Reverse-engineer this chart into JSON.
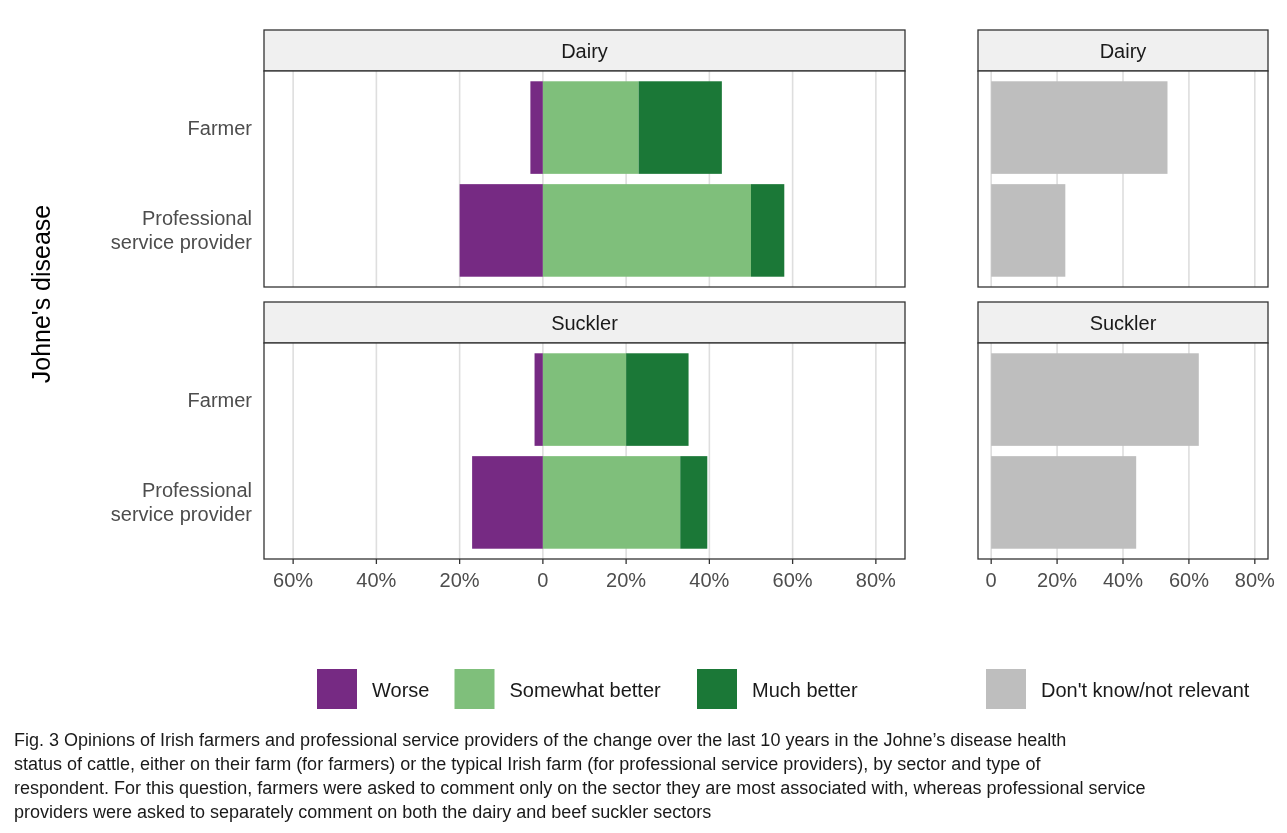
{
  "chart_data": [
    {
      "type": "bar",
      "orientation": "horizontal",
      "stacked": true,
      "title": "Dairy",
      "ylabel": "Johne's disease",
      "categories": [
        "Farmer",
        "Professional service provider"
      ],
      "series": [
        {
          "name": "Worse",
          "color": "#762a83",
          "values": [
            -3,
            -20
          ]
        },
        {
          "name": "Somewhat better",
          "color": "#7fbf7b",
          "values": [
            23,
            50
          ]
        },
        {
          "name": "Much better",
          "color": "#1b7837",
          "values": [
            20,
            8
          ]
        }
      ],
      "xlim": [
        -67,
        87
      ],
      "xticks": [
        -60,
        -40,
        -20,
        0,
        20,
        40,
        60,
        80
      ],
      "grid": "x",
      "tick_labels": "y",
      "legend": "bottom",
      "annotations": [
        "Fig. 3 Opinions of Irish farmers and professional service providers of the change over the last 10 years in the Johne’s disease health status of cattle, either on their farm (for farmers) or the typical Irish farm (for professional service providers), by sector and type of respondent. For this question, farmers were asked to comment only on the sector they are most associated with, whereas professional service providers were asked to separately comment on both the dairy and beef suckler sectors"
      ]
    },
    {
      "type": "bar",
      "orientation": "horizontal",
      "title": "Dairy",
      "categories": [
        null,
        null
      ],
      "series": [
        {
          "name": "Don't know/not relevant",
          "color": "#bebebe",
          "values": [
            53.5,
            22.5
          ]
        }
      ],
      "xlim": [
        -4,
        84
      ],
      "xticks": [
        0,
        20,
        40,
        60,
        80
      ],
      "grid": "x",
      "tick_labels": false,
      "legend": "bottom"
    },
    {
      "type": "bar",
      "orientation": "horizontal",
      "stacked": true,
      "title": "Suckler",
      "categories": [
        "Farmer",
        "Professional service provider"
      ],
      "series": [
        {
          "color": "#762a83",
          "values": [
            -2,
            -17
          ]
        },
        {
          "color": "#7fbf7b",
          "values": [
            20,
            33
          ]
        },
        {
          "color": "#1b7837",
          "values": [
            15,
            6.5
          ]
        }
      ],
      "xlim": [
        -67,
        87
      ],
      "xticks": [
        {
          "value": -60,
          "label": "60%"
        },
        {
          "value": -40,
          "label": "40%"
        },
        {
          "value": -20,
          "label": "20%"
        },
        0,
        {
          "value": 20,
          "label": "20%"
        },
        {
          "value": 40,
          "label": "40%"
        },
        {
          "value": 60,
          "label": "60%"
        },
        {
          "value": 80,
          "label": "80%"
        }
      ],
      "grid": "x"
    },
    {
      "type": "bar",
      "orientation": "horizontal",
      "title": "Suckler",
      "categories": [
        null,
        null
      ],
      "series": [
        {
          "color": "#bebebe",
          "values": [
            63,
            44
          ]
        }
      ],
      "xlim": [
        -4,
        84
      ],
      "xticks": [
        0,
        {
          "value": 20,
          "label": "20%"
        },
        {
          "value": 40,
          "label": "40%"
        },
        {
          "value": 60,
          "label": "60%"
        },
        {
          "value": 80,
          "label": "80%"
        }
      ],
      "grid": "x",
      "tick_labels": "x"
    }
  ]
}
